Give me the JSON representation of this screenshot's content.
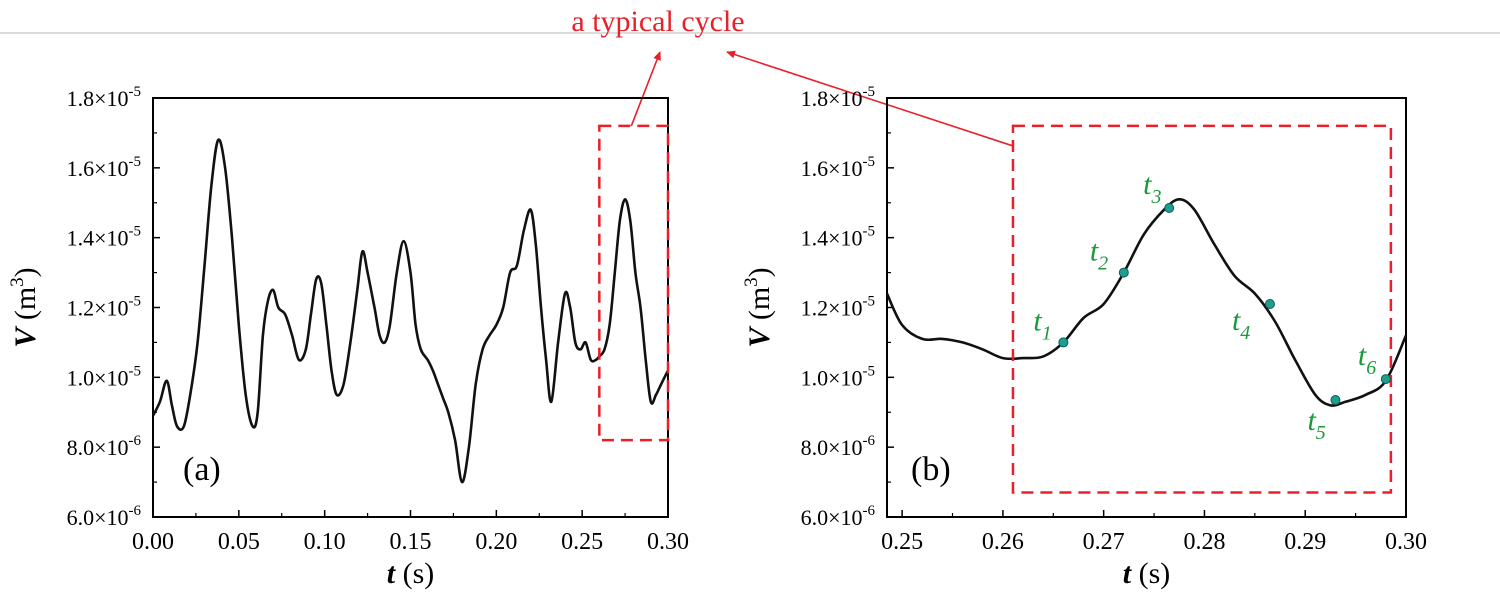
{
  "annotation": {
    "text": "a typical cycle",
    "color": "#e8202a"
  },
  "colors": {
    "curve": "#111111",
    "box": "#e8202a",
    "marker_fill": "#1e9e8e",
    "marker_label": "#1a9a3c"
  },
  "chart_data": [
    {
      "type": "line",
      "panel_label": "(a)",
      "xlabel_italic": "t",
      "xlabel_unit": " (s)",
      "ylabel_italic": "V",
      "ylabel_unit_base": " (m",
      "ylabel_unit_sup": "3",
      "ylabel_unit_close": ")",
      "xlim": [
        0.0,
        0.3
      ],
      "ylim": [
        6e-06,
        1.8e-05
      ],
      "x_ticks": [
        0.0,
        0.05,
        0.1,
        0.15,
        0.2,
        0.25,
        0.3
      ],
      "x_tick_labels": [
        "0.00",
        "0.05",
        "0.10",
        "0.15",
        "0.20",
        "0.25",
        "0.30"
      ],
      "y_ticks": [
        6e-06,
        8e-06,
        1e-05,
        1.2e-05,
        1.4e-05,
        1.6e-05,
        1.8e-05
      ],
      "y_tick_labels": [
        {
          "mant": "6.0",
          "exp": "-6"
        },
        {
          "mant": "8.0",
          "exp": "-6"
        },
        {
          "mant": "1.0",
          "exp": "-5"
        },
        {
          "mant": "1.2",
          "exp": "-5"
        },
        {
          "mant": "1.4",
          "exp": "-5"
        },
        {
          "mant": "1.6",
          "exp": "-5"
        },
        {
          "mant": "1.8",
          "exp": "-5"
        }
      ],
      "y_tick_times": "×10",
      "highlight_box": {
        "x": [
          0.26,
          0.3
        ],
        "y": [
          8.2e-06,
          1.72e-05
        ]
      },
      "series": [
        {
          "name": "V",
          "x": [
            0.0,
            0.004,
            0.008,
            0.011,
            0.014,
            0.018,
            0.022,
            0.026,
            0.03,
            0.034,
            0.038,
            0.042,
            0.046,
            0.05,
            0.054,
            0.058,
            0.061,
            0.064,
            0.067,
            0.07,
            0.073,
            0.077,
            0.081,
            0.085,
            0.089,
            0.092,
            0.095,
            0.098,
            0.101,
            0.104,
            0.107,
            0.111,
            0.115,
            0.119,
            0.122,
            0.125,
            0.129,
            0.132,
            0.135,
            0.138,
            0.142,
            0.146,
            0.15,
            0.153,
            0.156,
            0.16,
            0.163,
            0.166,
            0.169,
            0.172,
            0.176,
            0.18,
            0.184,
            0.188,
            0.192,
            0.196,
            0.2,
            0.204,
            0.208,
            0.212,
            0.216,
            0.22,
            0.223,
            0.226,
            0.229,
            0.232,
            0.236,
            0.24,
            0.243,
            0.246,
            0.249,
            0.252,
            0.255,
            0.258,
            0.26,
            0.263,
            0.266,
            0.269,
            0.272,
            0.275,
            0.278,
            0.281,
            0.284,
            0.287,
            0.29,
            0.293,
            0.296,
            0.3
          ],
          "y": [
            8.9e-06,
            9.3e-06,
            9.9e-06,
            9.2e-06,
            8.6e-06,
            8.6e-06,
            9.6e-06,
            1.1e-05,
            1.32e-05,
            1.55e-05,
            1.68e-05,
            1.6e-05,
            1.4e-05,
            1.15e-05,
            9.5e-06,
            8.6e-06,
            9e-06,
            1.12e-05,
            1.22e-05,
            1.25e-05,
            1.2e-05,
            1.18e-05,
            1.12e-05,
            1.05e-05,
            1.08e-05,
            1.18e-05,
            1.28e-05,
            1.27e-05,
            1.15e-05,
            1.02e-05,
            9.5e-06,
            9.8e-06,
            1.1e-05,
            1.25e-05,
            1.36e-05,
            1.3e-05,
            1.2e-05,
            1.12e-05,
            1.1e-05,
            1.15e-05,
            1.3e-05,
            1.39e-05,
            1.3e-05,
            1.15e-05,
            1.08e-05,
            1.05e-05,
            1.02e-05,
            9.8e-06,
            9.4e-06,
            9e-06,
            8.2e-06,
            7e-06,
            8e-06,
            9.8e-06,
            1.08e-05,
            1.12e-05,
            1.15e-05,
            1.2e-05,
            1.3e-05,
            1.32e-05,
            1.42e-05,
            1.48e-05,
            1.38e-05,
            1.2e-05,
            1.05e-05,
            9.3e-06,
            1.1e-05,
            1.24e-05,
            1.2e-05,
            1.1e-05,
            1.08e-05,
            1.1e-05,
            1.05e-05,
            1.05e-05,
            1.06e-05,
            1.08e-05,
            1.15e-05,
            1.3e-05,
            1.45e-05,
            1.51e-05,
            1.45e-05,
            1.3e-05,
            1.2e-05,
            1.05e-05,
            9.3e-06,
            9.5e-06,
            9.8e-06,
            1.02e-05
          ]
        }
      ]
    },
    {
      "type": "line",
      "panel_label": "(b)",
      "xlabel_italic": "t",
      "xlabel_unit": " (s)",
      "ylabel_italic": "V",
      "ylabel_unit_base": " (m",
      "ylabel_unit_sup": "3",
      "ylabel_unit_close": ")",
      "xlim": [
        0.2485,
        0.3
      ],
      "ylim": [
        6e-06,
        1.8e-05
      ],
      "x_ticks": [
        0.25,
        0.26,
        0.27,
        0.28,
        0.29,
        0.3
      ],
      "x_tick_labels": [
        "0.25",
        "0.26",
        "0.27",
        "0.28",
        "0.29",
        "0.30"
      ],
      "y_ticks": [
        6e-06,
        8e-06,
        1e-05,
        1.2e-05,
        1.4e-05,
        1.6e-05,
        1.8e-05
      ],
      "y_tick_labels": [
        {
          "mant": "6.0",
          "exp": "-6"
        },
        {
          "mant": "8.0",
          "exp": "-6"
        },
        {
          "mant": "1.0",
          "exp": "-5"
        },
        {
          "mant": "1.2",
          "exp": "-5"
        },
        {
          "mant": "1.4",
          "exp": "-5"
        },
        {
          "mant": "1.6",
          "exp": "-5"
        },
        {
          "mant": "1.8",
          "exp": "-5"
        }
      ],
      "y_tick_times": "×10",
      "highlight_box": {
        "x": [
          0.261,
          0.2985
        ],
        "y": [
          6.7e-06,
          1.72e-05
        ]
      },
      "series": [
        {
          "name": "V",
          "x": [
            0.2485,
            0.25,
            0.252,
            0.254,
            0.256,
            0.258,
            0.26,
            0.262,
            0.264,
            0.266,
            0.268,
            0.27,
            0.272,
            0.274,
            0.276,
            0.2775,
            0.279,
            0.281,
            0.283,
            0.285,
            0.287,
            0.289,
            0.291,
            0.2925,
            0.294,
            0.296,
            0.298,
            0.3
          ],
          "y": [
            1.24e-05,
            1.15e-05,
            1.11e-05,
            1.11e-05,
            1.1e-05,
            1.08e-05,
            1.055e-05,
            1.055e-05,
            1.06e-05,
            1.1e-05,
            1.17e-05,
            1.21e-05,
            1.3e-05,
            1.41e-05,
            1.48e-05,
            1.51e-05,
            1.48e-05,
            1.38e-05,
            1.29e-05,
            1.24e-05,
            1.16e-05,
            1.05e-05,
            9.5e-06,
            9.2e-06,
            9.3e-06,
            9.5e-06,
            9.9e-06,
            1.12e-05
          ]
        }
      ],
      "markers": [
        {
          "label_base": "t",
          "label_sub": "1",
          "x": 0.266,
          "y": 1.1e-05
        },
        {
          "label_base": "t",
          "label_sub": "2",
          "x": 0.272,
          "y": 1.3e-05
        },
        {
          "label_base": "t",
          "label_sub": "3",
          "x": 0.2765,
          "y": 1.485e-05
        },
        {
          "label_base": "t",
          "label_sub": "4",
          "x": 0.2865,
          "y": 1.21e-05
        },
        {
          "label_base": "t",
          "label_sub": "5",
          "x": 0.293,
          "y": 9.35e-06
        },
        {
          "label_base": "t",
          "label_sub": "6",
          "x": 0.298,
          "y": 9.95e-06
        }
      ]
    }
  ]
}
